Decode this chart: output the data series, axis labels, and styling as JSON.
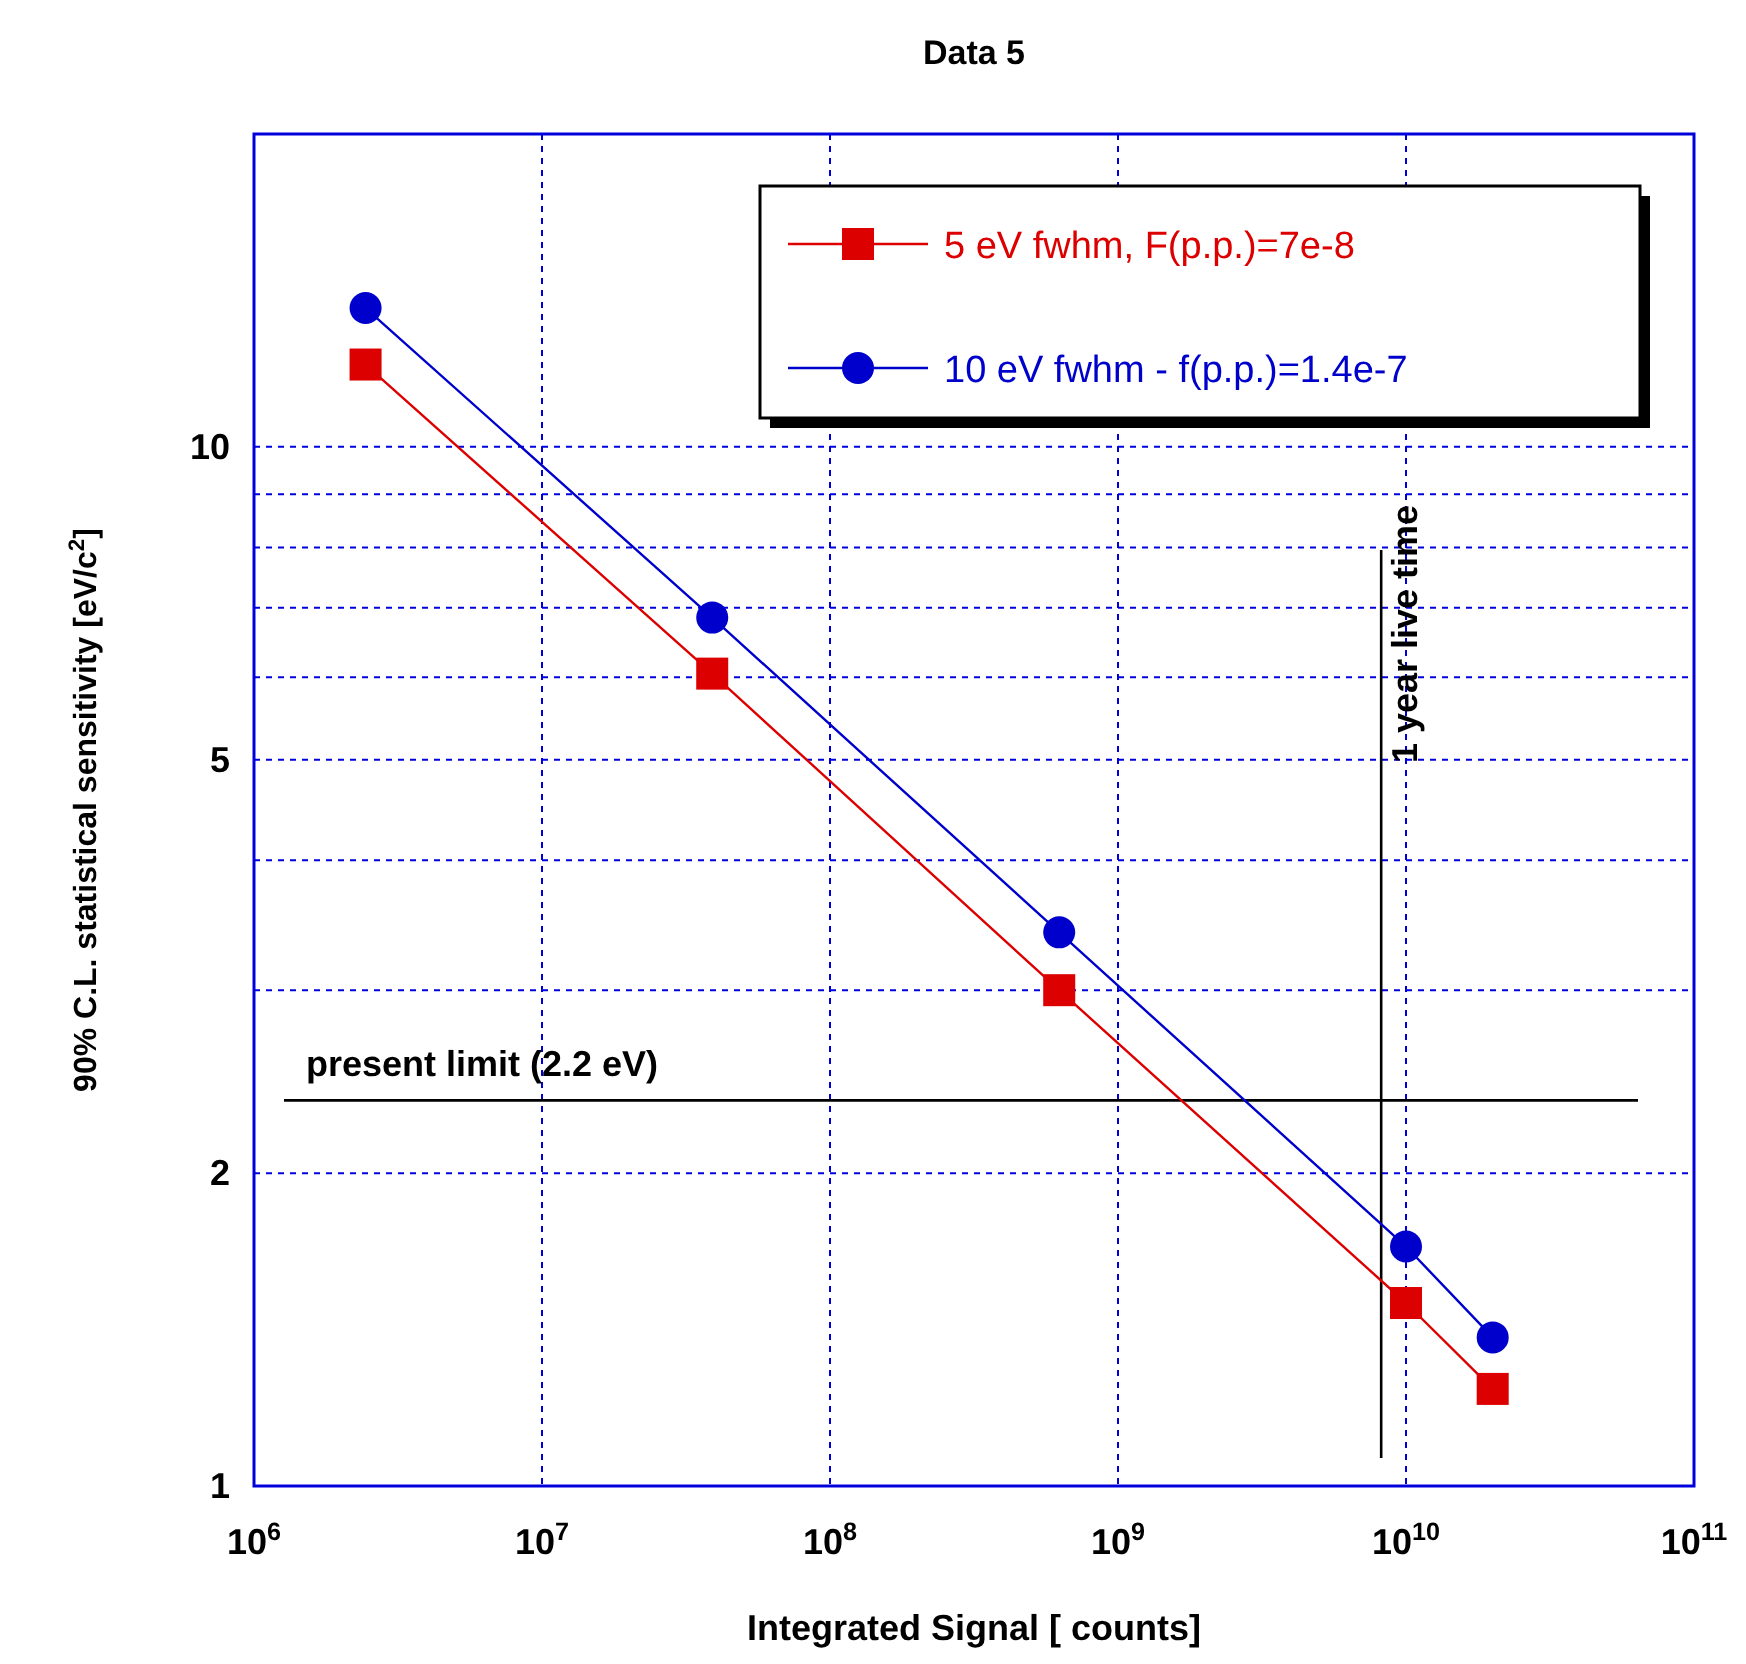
{
  "chart_data": {
    "type": "line",
    "title": "Data 5",
    "xlabel": "Integrated Signal [ counts]",
    "ylabel": "90% C.L. statistical sensitivity [eV/c$^{2}$]",
    "log": "xy",
    "grid": true,
    "legend": "top right",
    "line_style": "solid",
    "x": [
      2440000,
      39000000,
      625000000,
      10000000000,
      20000000000
    ],
    "series": [
      {
        "name": "5 eV fwhm, F(p.p.)=7e-8",
        "color": "#dd0000",
        "marker": "square",
        "values": [
          12.0,
          6.05,
          3.0,
          1.5,
          1.24
        ]
      },
      {
        "name": "10 eV fwhm - f(p.p.)=1.4e-7",
        "color": "#0000cc",
        "marker": "circle",
        "values": [
          13.6,
          6.85,
          3.41,
          1.7,
          1.39
        ]
      }
    ],
    "xlim": [
      1000000,
      100000000000
    ],
    "xticks": [
      {
        "value": 1000000,
        "label": "10$^{6}$"
      },
      {
        "value": 10000000,
        "label": "10$^{7}$"
      },
      {
        "value": 100000000,
        "label": "10$^{8}$"
      },
      {
        "value": 1000000000,
        "label": "10$^{9}$"
      },
      {
        "value": 10000000000,
        "label": "10$^{10}$"
      },
      {
        "value": 100000000000,
        "label": "10$^{11}$"
      }
    ],
    "ylim": [
      1,
      20
    ],
    "yticks": [
      1,
      2,
      {
        "value": 3,
        "label": null
      },
      {
        "value": 4,
        "label": null
      },
      5,
      {
        "value": 6,
        "label": null
      },
      {
        "value": 7,
        "label": null
      },
      {
        "value": 8,
        "label": null
      },
      {
        "value": 9,
        "label": null
      },
      10
    ],
    "ref_lines": [
      {
        "axis": "y",
        "value": 2.35,
        "label": "present limit (2.2 eV)",
        "color": "#000000"
      },
      {
        "axis": "x",
        "value": 8200000000,
        "label": "1 year live time",
        "color": "#000000"
      }
    ]
  }
}
